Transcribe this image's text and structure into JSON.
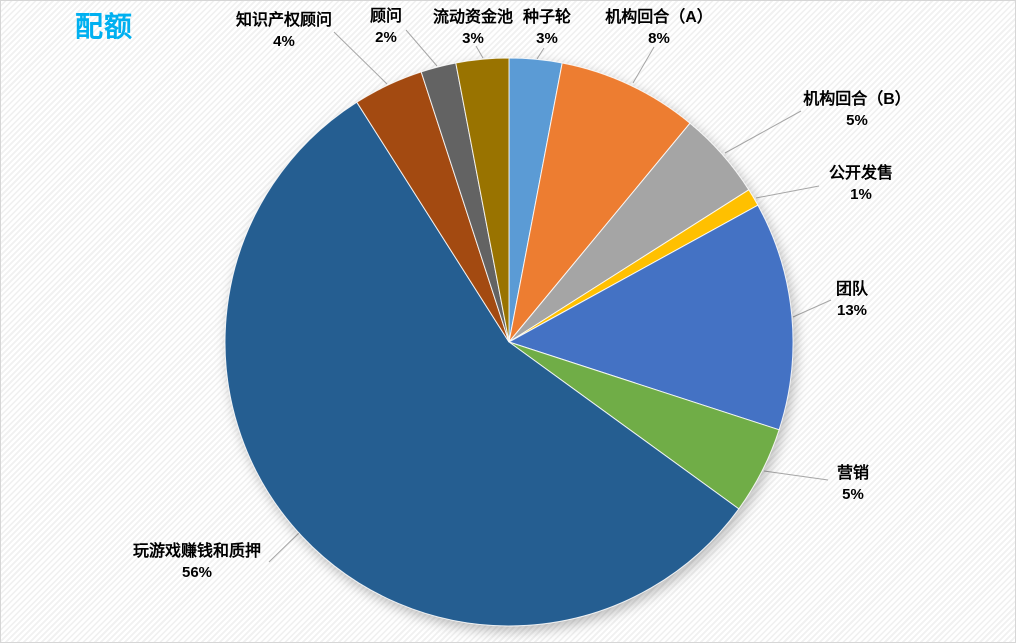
{
  "chart_data": {
    "type": "pie",
    "title": "配额",
    "title_color": "#00B0F0",
    "start_angle_deg": 0,
    "direction": "clockwise",
    "total": 100,
    "leader_line_color": "#A6A6A6",
    "legend": "none",
    "labels_position": "outside-end",
    "slices": [
      {
        "label": "种子轮",
        "value": 3,
        "pct_label": "3%",
        "color": "#5B9BD5"
      },
      {
        "label": "机构回合（A）",
        "value": 8,
        "pct_label": "8%",
        "color": "#ED7D31"
      },
      {
        "label": "机构回合（B）",
        "value": 5,
        "pct_label": "5%",
        "color": "#A5A5A5"
      },
      {
        "label": "公开发售",
        "value": 1,
        "pct_label": "1%",
        "color": "#FFC000"
      },
      {
        "label": "团队",
        "value": 13,
        "pct_label": "13%",
        "color": "#4472C4"
      },
      {
        "label": "营销",
        "value": 5,
        "pct_label": "5%",
        "color": "#70AD47"
      },
      {
        "label": "玩游戏赚钱和质押",
        "value": 56,
        "pct_label": "56%",
        "color": "#255E91"
      },
      {
        "label": "知识产权顾问",
        "value": 4,
        "pct_label": "4%",
        "color": "#A34A11"
      },
      {
        "label": "顾问",
        "value": 2,
        "pct_label": "2%",
        "color": "#636363"
      },
      {
        "label": "流动资金池",
        "value": 3,
        "pct_label": "3%",
        "color": "#997300"
      }
    ]
  }
}
